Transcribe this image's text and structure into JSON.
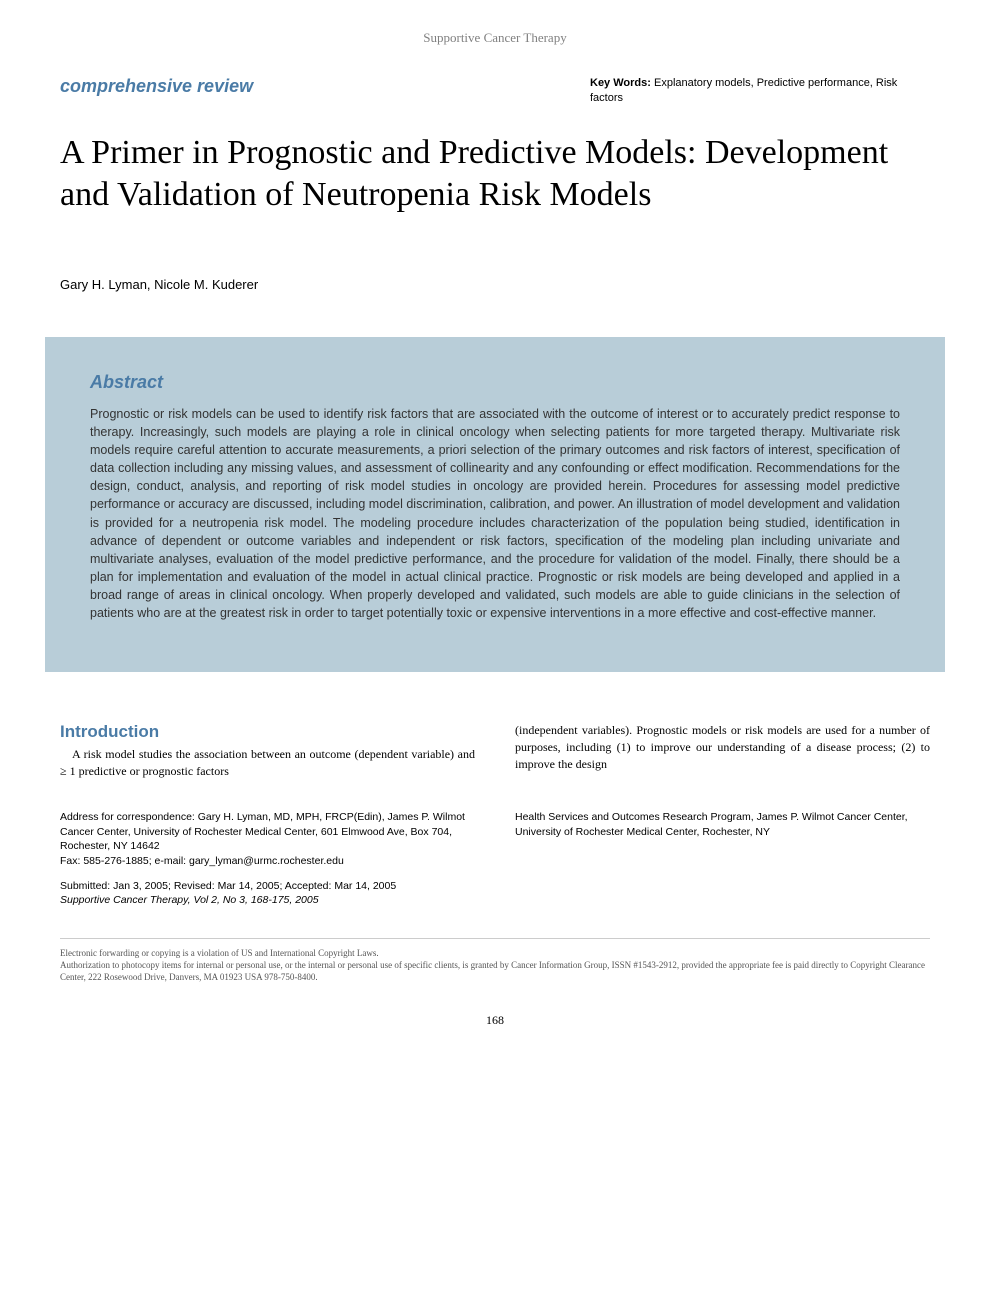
{
  "journal_header": "Supportive Cancer Therapy",
  "review_type": "comprehensive review",
  "keywords": {
    "label": "Key Words:",
    "text": "Explanatory models, Predictive performance, Risk factors"
  },
  "title": "A Primer in Prognostic and Predictive Models: Development and Validation of Neutropenia Risk Models",
  "authors": "Gary H. Lyman, Nicole M. Kuderer",
  "abstract": {
    "heading": "Abstract",
    "text": "Prognostic or risk models can be used to identify risk factors that are associated with the outcome of interest or to accurately predict response to therapy. Increasingly, such models are playing a role in clinical oncology when selecting patients for more targeted therapy. Multivariate risk models require careful attention to accurate measurements, a priori selection of the primary outcomes and risk factors of interest, specification of data collection including any missing values, and assessment of collinearity and any confounding or effect modification. Recommendations for the design, conduct, analysis, and reporting of risk model studies in oncology are provided herein. Procedures for assessing model predictive performance or accuracy are discussed, including model discrimination, calibration, and power. An illustration of model development and validation is provided for a neutropenia risk model. The modeling procedure includes characterization of the population being studied, identification in advance of dependent or outcome variables and independent or risk factors, specification of the modeling plan including univariate and multivariate analyses, evaluation of the model predictive performance, and the procedure for validation of the model. Finally, there should be a plan for implementation and evaluation of the model in actual clinical practice. Prognostic or risk models are being developed and applied in a broad range of areas in clinical oncology. When properly developed and validated, such models are able to guide clinicians in the selection of patients who are at the greatest risk in order to target potentially toxic or expensive interventions in a more effective and cost-effective manner."
  },
  "introduction": {
    "heading": "Introduction",
    "col1": "A risk model studies the association between an outcome (dependent variable) and ≥ 1 predictive or prognostic factors",
    "col2": "(independent variables). Prognostic models or risk models are used for a number of purposes, including (1) to improve our understanding of a disease process; (2) to improve the design"
  },
  "footer": {
    "correspondence": "Address for correspondence: Gary H. Lyman, MD, MPH, FRCP(Edin), James P. Wilmot Cancer Center, University of Rochester Medical Center, 601 Elmwood Ave, Box 704, Rochester, NY 14642",
    "contact": "Fax: 585-276-1885; e-mail: gary_lyman@urmc.rochester.edu",
    "submitted": "Submitted: Jan 3, 2005; Revised: Mar 14, 2005; Accepted: Mar 14, 2005",
    "citation": "Supportive Cancer Therapy, Vol 2, No 3, 168-175, 2005",
    "affiliation": "Health Services and Outcomes Research Program, James P. Wilmot Cancer Center, University of Rochester Medical Center, Rochester, NY"
  },
  "copyright": {
    "line1": "Electronic forwarding or copying is a violation of US and International Copyright Laws.",
    "line2": "Authorization to photocopy items for internal or personal use, or the internal or personal use of specific clients, is granted by Cancer Information Group, ISSN #1543-2912, provided the appropriate fee is paid directly to Copyright Clearance Center, 222 Rosewood Drive, Danvers, MA 01923 USA 978-750-8400."
  },
  "page_number": "168",
  "colors": {
    "accent": "#4a7ba6",
    "abstract_bg": "#b8cdd8",
    "text": "#000000",
    "muted": "#808080"
  }
}
